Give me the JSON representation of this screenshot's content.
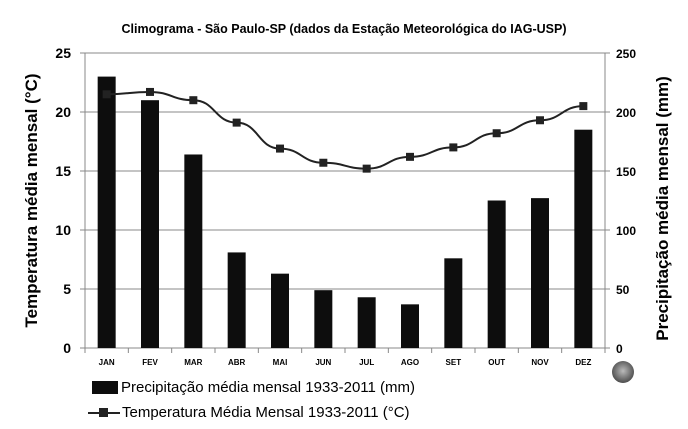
{
  "chart_data": {
    "type": "bar+line",
    "title": "Climograma - São Paulo-SP (dados da Estação Meteorológica do IAG-USP)",
    "categories": [
      "JAN",
      "FEV",
      "MAR",
      "ABR",
      "MAI",
      "JUN",
      "JUL",
      "AGO",
      "SET",
      "OUT",
      "NOV",
      "DEZ"
    ],
    "series": [
      {
        "name": "Precipitação média mensal 1933-2011 (mm)",
        "type": "bar",
        "axis": "right",
        "color": "#0d0d0d",
        "values": [
          230,
          210,
          164,
          81,
          63,
          49,
          43,
          37,
          76,
          125,
          127,
          185
        ]
      },
      {
        "name": "Temperatura Média Mensal 1933-2011 (°C)",
        "type": "line",
        "axis": "left",
        "color": "#222222",
        "values": [
          21.5,
          21.7,
          21.0,
          19.1,
          16.9,
          15.7,
          15.2,
          16.2,
          17.0,
          18.2,
          19.3,
          20.5
        ]
      }
    ],
    "ylabel_left": "Temperatura média mensal (°C)",
    "ylabel_right": "Precipitação média mensal (mm)",
    "ylim_left": [
      0,
      25
    ],
    "ylim_right": [
      0,
      250
    ],
    "yticks_left": [
      "0",
      "5",
      "10",
      "15",
      "20",
      "25"
    ],
    "yticks_right": [
      "0",
      "50",
      "100",
      "150",
      "200",
      "250"
    ],
    "grid": true,
    "legend_position": "bottom-left"
  },
  "legend": {
    "bar_label": "Precipitação média mensal 1933-2011 (mm)",
    "line_label": "Temperatura Média Mensal 1933-2011 (°C)"
  },
  "logo": "iag-usp-logo-icon"
}
